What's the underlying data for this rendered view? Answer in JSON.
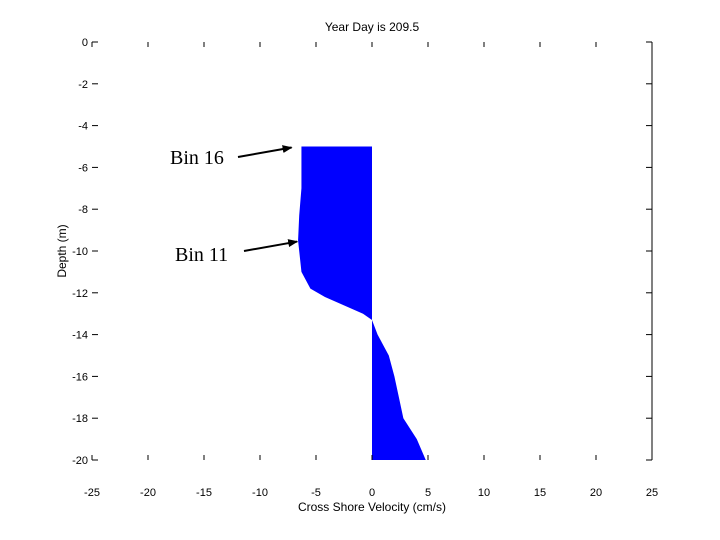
{
  "chart_data": {
    "type": "area",
    "title": "Year Day is 209.5",
    "xlabel": "Cross Shore Velocity (cm/s)",
    "ylabel": "Depth (m)",
    "xlim": [
      -25,
      25
    ],
    "ylim": [
      -20,
      0
    ],
    "x_ticks": [
      "-25",
      "-20",
      "-15",
      "-10",
      "-5",
      "0",
      "5",
      "10",
      "15",
      "20",
      "25"
    ],
    "y_ticks": [
      "0",
      "-2",
      "-4",
      "-6",
      "-8",
      "-10",
      "-12",
      "-14",
      "-16",
      "-18",
      "-20"
    ],
    "grid": false,
    "fill_color": "#0000ff",
    "baseline": 0,
    "profile": [
      {
        "depth": -5.0,
        "velocity": -6.3
      },
      {
        "depth": -7.0,
        "velocity": -6.3
      },
      {
        "depth": -8.3,
        "velocity": -6.5
      },
      {
        "depth": -9.5,
        "velocity": -6.6
      },
      {
        "depth": -11.0,
        "velocity": -6.3
      },
      {
        "depth": -11.8,
        "velocity": -5.5
      },
      {
        "depth": -12.2,
        "velocity": -4.2
      },
      {
        "depth": -12.6,
        "velocity": -2.5
      },
      {
        "depth": -13.0,
        "velocity": -0.8
      },
      {
        "depth": -13.3,
        "velocity": 0.0
      },
      {
        "depth": -14.0,
        "velocity": 0.5
      },
      {
        "depth": -14.3,
        "velocity": 0.8
      },
      {
        "depth": -15.0,
        "velocity": 1.5
      },
      {
        "depth": -16.0,
        "velocity": 2.0
      },
      {
        "depth": -17.0,
        "velocity": 2.4
      },
      {
        "depth": -18.0,
        "velocity": 2.8
      },
      {
        "depth": -19.0,
        "velocity": 4.0
      },
      {
        "depth": -20.0,
        "velocity": 4.8
      }
    ],
    "annotations": [
      {
        "label": "Bin 16",
        "target_x": -7.0,
        "target_y": -5.0
      },
      {
        "label": "Bin 11",
        "target_x": -6.5,
        "target_y": -9.5
      }
    ]
  }
}
